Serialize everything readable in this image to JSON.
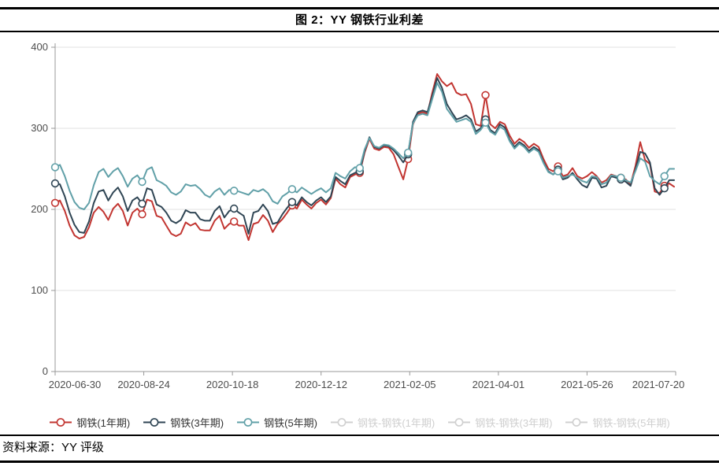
{
  "header": {
    "title": "图 2：YY 钢铁行业利差"
  },
  "footer": {
    "source": "资料来源：YY 评级"
  },
  "chart_data": {
    "type": "line",
    "title": "图 2：YY 钢铁行业利差",
    "legend_position": "bottom",
    "grid": true,
    "x_axis": {
      "start_date": "2020-06-30",
      "end_date": "2021-07-20",
      "total_days": 385,
      "tick_labels": [
        "2020-06-30",
        "2020-08-24",
        "2020-10-18",
        "2020-12-12",
        "2021-02-05",
        "2021-04-01",
        "2021-05-26",
        "2021-07-20"
      ],
      "tick_days": [
        0,
        55,
        110,
        165,
        220,
        275,
        330,
        385
      ]
    },
    "y_axis": {
      "min": 0,
      "max": 400,
      "ticks": [
        0,
        100,
        200,
        300,
        400
      ]
    },
    "sample_step_days": 3,
    "marker_indices": [
      0,
      18,
      37,
      49,
      63,
      73,
      89,
      104,
      117,
      126
    ],
    "colors": {
      "axis": "#999999",
      "grid": "#e0e0e0",
      "tick_label": "#4d4d4d",
      "disabled_legend": "#d0d0d0"
    },
    "series": [
      {
        "name": "钢铁(1年期)",
        "color": "#c23531",
        "enabled": true,
        "values": [
          208,
          211,
          198,
          180,
          168,
          164,
          166,
          178,
          196,
          203,
          197,
          187,
          201,
          207,
          198,
          180,
          196,
          201,
          194,
          212,
          210,
          192,
          190,
          180,
          170,
          167,
          170,
          184,
          180,
          183,
          175,
          174,
          174,
          186,
          192,
          176,
          182,
          185,
          180,
          180,
          162,
          182,
          184,
          193,
          186,
          172,
          182,
          188,
          196,
          205,
          201,
          212,
          206,
          201,
          208,
          212,
          206,
          214,
          238,
          231,
          227,
          240,
          243,
          245,
          270,
          287,
          275,
          273,
          277,
          276,
          268,
          252,
          237,
          262,
          305,
          318,
          320,
          318,
          344,
          367,
          358,
          352,
          356,
          344,
          341,
          342,
          330,
          305,
          303,
          341,
          305,
          300,
          308,
          305,
          291,
          281,
          287,
          283,
          276,
          281,
          277,
          262,
          250,
          247,
          253,
          241,
          243,
          251,
          241,
          238,
          241,
          246,
          241,
          233,
          236,
          243,
          241,
          239,
          237,
          231,
          253,
          283,
          261,
          256,
          222,
          220,
          229,
          232,
          228
        ]
      },
      {
        "name": "钢铁(3年期)",
        "color": "#2f4554",
        "enabled": true,
        "values": [
          232,
          231,
          216,
          196,
          181,
          172,
          171,
          185,
          208,
          222,
          224,
          211,
          221,
          227,
          216,
          198,
          211,
          215,
          207,
          226,
          224,
          206,
          203,
          196,
          186,
          183,
          187,
          199,
          196,
          196,
          188,
          186,
          186,
          198,
          204,
          190,
          198,
          201,
          196,
          192,
          170,
          196,
          198,
          206,
          198,
          182,
          184,
          194,
          202,
          209,
          205,
          215,
          209,
          205,
          211,
          215,
          209,
          216,
          240,
          235,
          231,
          242,
          245,
          247,
          272,
          289,
          277,
          275,
          279,
          278,
          273,
          266,
          258,
          268,
          308,
          320,
          322,
          320,
          340,
          362,
          350,
          330,
          320,
          311,
          313,
          316,
          311,
          296,
          300,
          311,
          298,
          294,
          305,
          301,
          286,
          277,
          283,
          279,
          272,
          277,
          273,
          258,
          247,
          243,
          249,
          237,
          239,
          245,
          237,
          230,
          227,
          239,
          238,
          227,
          229,
          241,
          239,
          237,
          234,
          229,
          249,
          271,
          269,
          258,
          226,
          218,
          226,
          236,
          236
        ]
      },
      {
        "name": "钢铁(5年期)",
        "color": "#61a0a8",
        "enabled": true,
        "values": [
          252,
          255,
          241,
          223,
          209,
          202,
          200,
          208,
          230,
          246,
          250,
          240,
          247,
          251,
          241,
          228,
          238,
          242,
          234,
          249,
          252,
          236,
          233,
          229,
          221,
          218,
          222,
          231,
          229,
          230,
          225,
          218,
          215,
          222,
          226,
          218,
          224,
          223,
          222,
          220,
          218,
          224,
          222,
          225,
          220,
          210,
          207,
          216,
          220,
          225,
          221,
          227,
          223,
          219,
          223,
          226,
          221,
          226,
          245,
          241,
          238,
          247,
          252,
          251,
          274,
          288,
          278,
          276,
          280,
          279,
          275,
          269,
          263,
          270,
          306,
          316,
          318,
          316,
          336,
          356,
          345,
          324,
          316,
          308,
          310,
          312,
          308,
          293,
          298,
          307,
          296,
          292,
          302,
          298,
          284,
          275,
          281,
          277,
          270,
          275,
          271,
          257,
          246,
          243,
          247,
          239,
          241,
          243,
          239,
          235,
          233,
          241,
          240,
          231,
          233,
          242,
          241,
          239,
          236,
          233,
          247,
          263,
          259,
          241,
          235,
          231,
          241,
          250,
          250
        ]
      },
      {
        "name": "钢铁-钢铁(1年期)",
        "color": "#d0d0d0",
        "enabled": false,
        "values": []
      },
      {
        "name": "钢铁-钢铁(3年期)",
        "color": "#d0d0d0",
        "enabled": false,
        "values": []
      },
      {
        "name": "钢铁-钢铁(5年期)",
        "color": "#d0d0d0",
        "enabled": false,
        "values": []
      }
    ]
  }
}
